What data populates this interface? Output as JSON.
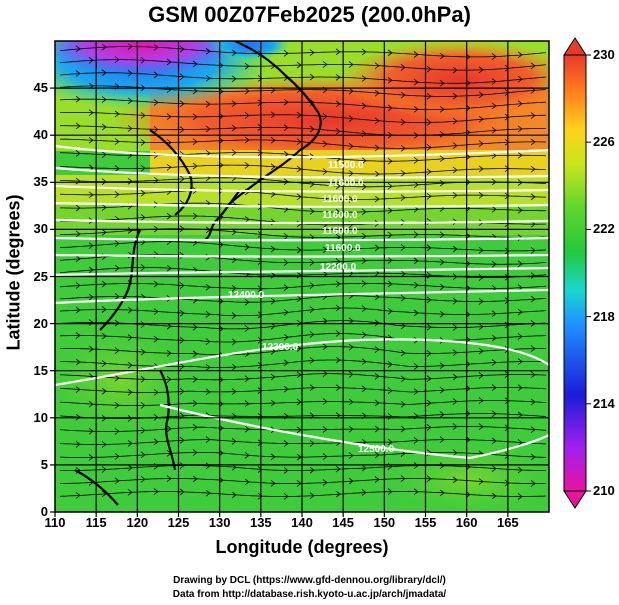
{
  "title": "GSM 00Z07Feb2025 (200.0hPa)",
  "x_axis": {
    "label": "Longitude (degrees)",
    "ticks": [
      "110",
      "115",
      "120",
      "125",
      "130",
      "135",
      "140",
      "145",
      "150",
      "155",
      "160",
      "165"
    ],
    "range": [
      110,
      170
    ]
  },
  "y_axis": {
    "label": "Latitude  (degrees)",
    "ticks": [
      "0",
      "5",
      "10",
      "15",
      "20",
      "25",
      "30",
      "35",
      "40",
      "45"
    ],
    "range": [
      0,
      50
    ]
  },
  "colorbar": {
    "ticks": [
      "210",
      "214",
      "218",
      "222",
      "226",
      "230"
    ],
    "range": [
      210,
      230
    ],
    "colors": [
      "#e8149c",
      "#a020f0",
      "#1c1cd8",
      "#1e90ff",
      "#19d6cf",
      "#24c93a",
      "#5fd62c",
      "#c8e61c",
      "#ffd21a",
      "#ff7a1c",
      "#e83a2a"
    ]
  },
  "contour_labels": [
    "11500.0",
    "11600.0",
    "12200.0",
    "12400.0",
    "12300.0",
    "12500.0"
  ],
  "credits": {
    "line1": "Drawing by DCL (https://www.gfd-dennou.org/library/dcl/)",
    "line2": "Data from http://database.rish.kyoto-u.ac.jp/arch/jmadata/"
  }
}
